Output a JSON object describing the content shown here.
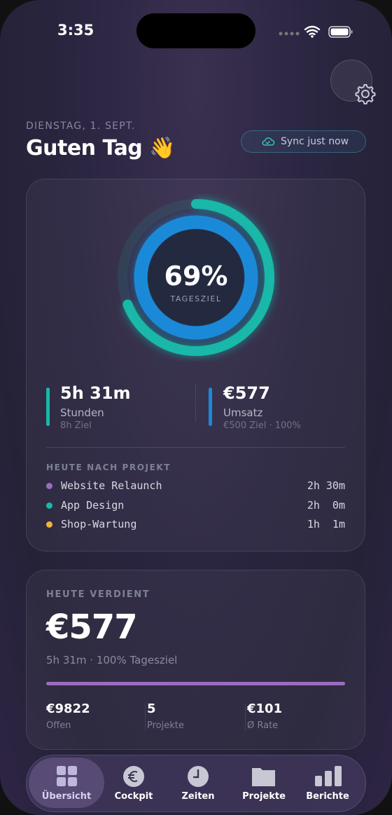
{
  "status_bar": {
    "time": "3:35"
  },
  "header": {
    "date": "DIENSTAG, 1. SEPT.",
    "greeting": "Guten Tag 👋",
    "sync": "Sync just now"
  },
  "goal_card": {
    "ring": {
      "value": 69,
      "value_label": "69%",
      "label": "TAGESZIEL"
    },
    "stats": [
      {
        "value": "5h 31m",
        "label": "Stunden",
        "sub": "8h Ziel"
      },
      {
        "value": "€577",
        "label": "Umsatz",
        "sub": "€500 Ziel · 100%"
      }
    ],
    "projects_title": "HEUTE NACH PROJEKT",
    "projects": [
      {
        "name": "Website Relaunch",
        "time": "2h 30m"
      },
      {
        "name": "App Design",
        "time": "2h  0m"
      },
      {
        "name": "Shop-Wartung",
        "time": "1h  1m"
      }
    ]
  },
  "earnings_card": {
    "title": "HEUTE VERDIENT",
    "amount": "€577",
    "sub": "5h 31m · 100% Tagesziel",
    "stats": [
      {
        "value": "€9822",
        "label": "Offen"
      },
      {
        "value": "5",
        "label": "Projekte"
      },
      {
        "value": "€101",
        "label": "Ø Rate"
      }
    ]
  },
  "tab_bar": {
    "tabs": [
      "Übersicht",
      "Cockpit",
      "Zeiten",
      "Projekte",
      "Berichte"
    ]
  }
}
